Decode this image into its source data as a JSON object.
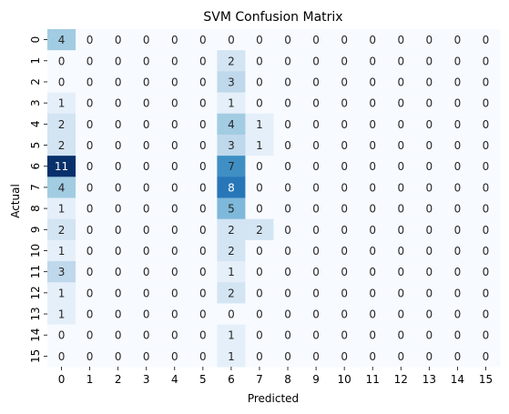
{
  "chart_data": {
    "type": "heatmap",
    "title": "SVM Confusion Matrix",
    "xlabel": "Predicted",
    "ylabel": "Actual",
    "x_categories": [
      "0",
      "1",
      "2",
      "3",
      "4",
      "5",
      "6",
      "7",
      "8",
      "9",
      "10",
      "11",
      "12",
      "13",
      "14",
      "15"
    ],
    "y_categories": [
      "0",
      "1",
      "2",
      "3",
      "4",
      "5",
      "6",
      "7",
      "8",
      "9",
      "10",
      "11",
      "12",
      "13",
      "14",
      "15"
    ],
    "values": [
      [
        4,
        0,
        0,
        0,
        0,
        0,
        0,
        0,
        0,
        0,
        0,
        0,
        0,
        0,
        0,
        0
      ],
      [
        0,
        0,
        0,
        0,
        0,
        0,
        2,
        0,
        0,
        0,
        0,
        0,
        0,
        0,
        0,
        0
      ],
      [
        0,
        0,
        0,
        0,
        0,
        0,
        3,
        0,
        0,
        0,
        0,
        0,
        0,
        0,
        0,
        0
      ],
      [
        1,
        0,
        0,
        0,
        0,
        0,
        1,
        0,
        0,
        0,
        0,
        0,
        0,
        0,
        0,
        0
      ],
      [
        2,
        0,
        0,
        0,
        0,
        0,
        4,
        1,
        0,
        0,
        0,
        0,
        0,
        0,
        0,
        0
      ],
      [
        2,
        0,
        0,
        0,
        0,
        0,
        3,
        1,
        0,
        0,
        0,
        0,
        0,
        0,
        0,
        0
      ],
      [
        11,
        0,
        0,
        0,
        0,
        0,
        7,
        0,
        0,
        0,
        0,
        0,
        0,
        0,
        0,
        0
      ],
      [
        4,
        0,
        0,
        0,
        0,
        0,
        8,
        0,
        0,
        0,
        0,
        0,
        0,
        0,
        0,
        0
      ],
      [
        1,
        0,
        0,
        0,
        0,
        0,
        5,
        0,
        0,
        0,
        0,
        0,
        0,
        0,
        0,
        0
      ],
      [
        2,
        0,
        0,
        0,
        0,
        0,
        2,
        2,
        0,
        0,
        0,
        0,
        0,
        0,
        0,
        0
      ],
      [
        1,
        0,
        0,
        0,
        0,
        0,
        2,
        0,
        0,
        0,
        0,
        0,
        0,
        0,
        0,
        0
      ],
      [
        3,
        0,
        0,
        0,
        0,
        0,
        1,
        0,
        0,
        0,
        0,
        0,
        0,
        0,
        0,
        0
      ],
      [
        1,
        0,
        0,
        0,
        0,
        0,
        2,
        0,
        0,
        0,
        0,
        0,
        0,
        0,
        0,
        0
      ],
      [
        1,
        0,
        0,
        0,
        0,
        0,
        0,
        0,
        0,
        0,
        0,
        0,
        0,
        0,
        0,
        0
      ],
      [
        0,
        0,
        0,
        0,
        0,
        0,
        1,
        0,
        0,
        0,
        0,
        0,
        0,
        0,
        0,
        0
      ],
      [
        0,
        0,
        0,
        0,
        0,
        0,
        1,
        0,
        0,
        0,
        0,
        0,
        0,
        0,
        0,
        0
      ]
    ],
    "colormap": "Blues",
    "value_range": [
      0,
      11
    ],
    "annotated": true,
    "colorbar": false
  }
}
